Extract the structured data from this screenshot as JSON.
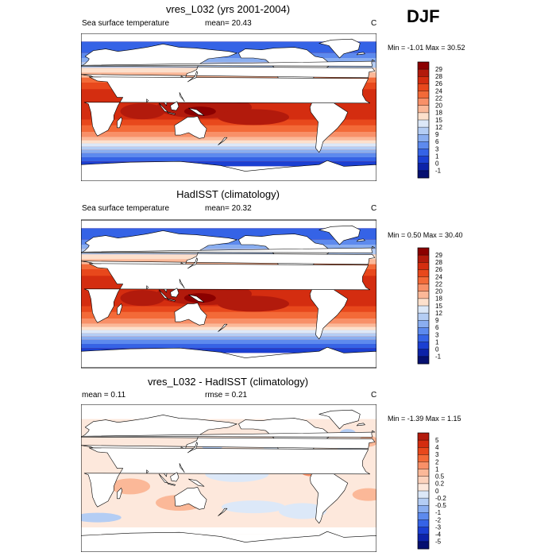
{
  "season": "DJF",
  "panels": [
    {
      "title": "vres_L032 (yrs 2001-2004)",
      "left_label": "Sea surface temperature",
      "mean_label": "mean=  20.43",
      "units": "C",
      "minmax": "Min =  -1.01 Max =  30.52",
      "kind": "sst",
      "colorbar": {
        "levels": [
          "29",
          "28",
          "26",
          "24",
          "22",
          "20",
          "18",
          "15",
          "12",
          "9",
          "6",
          "3",
          "1",
          "0",
          "-1"
        ],
        "colors": [
          "#8b0000",
          "#b21a0c",
          "#d42d10",
          "#e8481c",
          "#f36a38",
          "#f89068",
          "#fbb898",
          "#fde0cc",
          "#dce8f8",
          "#b4cdf4",
          "#8aaef0",
          "#5d8aee",
          "#3563e6",
          "#1b3fd2",
          "#0c22a8",
          "#061070"
        ]
      }
    },
    {
      "title": "HadISST (climatology)",
      "left_label": "Sea surface temperature",
      "mean_label": "mean=  20.32",
      "units": "C",
      "minmax": "Min =   0.50 Max =  30.40",
      "kind": "sst",
      "colorbar": {
        "levels": [
          "29",
          "28",
          "26",
          "24",
          "22",
          "20",
          "18",
          "15",
          "12",
          "9",
          "6",
          "3",
          "1",
          "0",
          "-1"
        ],
        "colors": [
          "#8b0000",
          "#b21a0c",
          "#d42d10",
          "#e8481c",
          "#f36a38",
          "#f89068",
          "#fbb898",
          "#fde0cc",
          "#dce8f8",
          "#b4cdf4",
          "#8aaef0",
          "#5d8aee",
          "#3563e6",
          "#1b3fd2",
          "#0c22a8",
          "#061070"
        ]
      }
    },
    {
      "title": "vres_L032 - HadISST (climatology)",
      "left_label": "mean =   0.11",
      "mean_label": "rmse =   0.21",
      "units": "C",
      "minmax": "Min =  -1.39 Max =   1.15",
      "kind": "diff",
      "colorbar": {
        "levels": [
          "5",
          "4",
          "3",
          "2",
          "1",
          "0.5",
          "0.2",
          "0",
          "-0.2",
          "-0.5",
          "-1",
          "-2",
          "-3",
          "-4",
          "-5"
        ],
        "colors": [
          "#b21a0c",
          "#d42d10",
          "#e8481c",
          "#f36a38",
          "#f89068",
          "#fbb898",
          "#fcd2bc",
          "#fde8dc",
          "#dce8f8",
          "#b4cdf4",
          "#8aaef0",
          "#5d8aee",
          "#3563e6",
          "#1b3fd2",
          "#0c22a8",
          "#061070"
        ]
      }
    }
  ]
}
